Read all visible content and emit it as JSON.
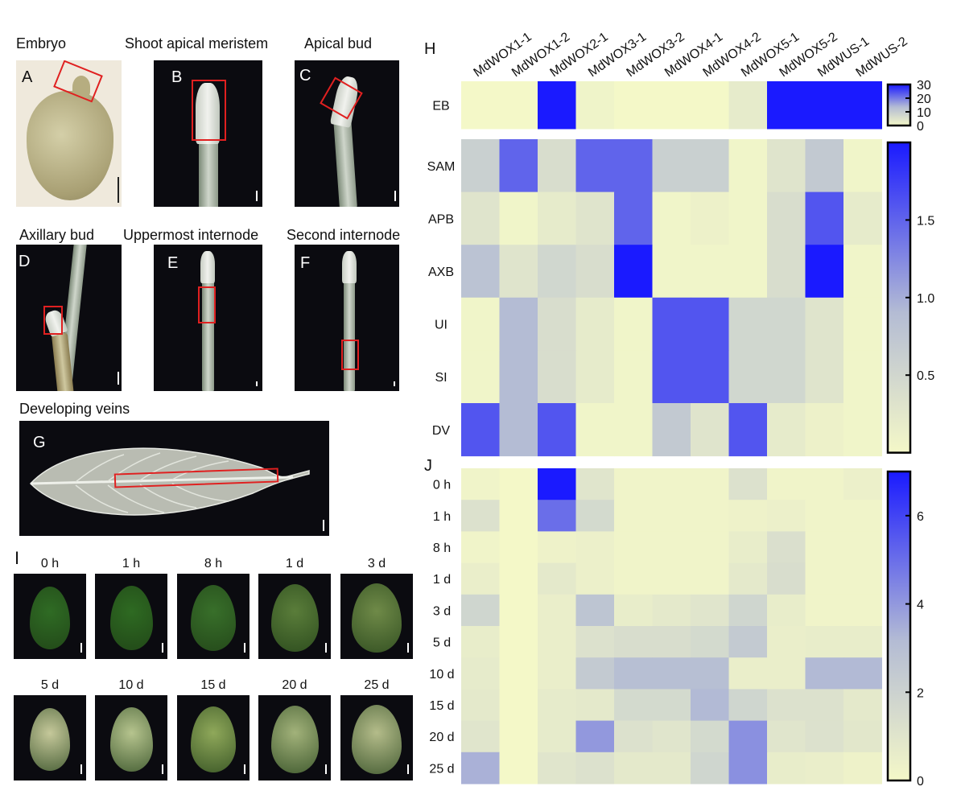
{
  "panels": {
    "A": {
      "letter": "A",
      "title": "Embryo"
    },
    "B": {
      "letter": "B",
      "title": "Shoot apical meristem"
    },
    "C": {
      "letter": "C",
      "title": "Apical bud"
    },
    "D": {
      "letter": "D",
      "title": "Axillary bud"
    },
    "E": {
      "letter": "E",
      "title": "Uppermost internode"
    },
    "F": {
      "letter": "F",
      "title": "Second internode"
    },
    "G": {
      "letter": "G",
      "title": "Developing veins"
    },
    "H": {
      "letter": "H"
    },
    "I": {
      "letter": "I",
      "timepoints_row1": [
        "0 h",
        "1 h",
        "8 h",
        "1 d",
        "3 d"
      ],
      "timepoints_row2": [
        "5 d",
        "10 d",
        "15 d",
        "20 d",
        "25 d"
      ]
    },
    "J": {
      "letter": "J"
    }
  },
  "chart_data": [
    {
      "type": "heatmap",
      "panel": "H (top)",
      "columns": [
        "MdWOX1-1",
        "MdWOX1-2",
        "MdWOX2-1",
        "MdWOX3-1",
        "MdWOX3-2",
        "MdWOX4-1",
        "MdWOX4-2",
        "MdWOX5-1",
        "MdWOX5-2",
        "MdWUS-1",
        "MdWUS-2"
      ],
      "rows": [
        "EB"
      ],
      "values": [
        [
          0.1,
          0.1,
          30,
          1,
          0.1,
          0.1,
          0.1,
          3,
          30,
          30,
          30
        ]
      ],
      "colorbar": {
        "ticks": [
          "30",
          "20",
          "10",
          "0"
        ],
        "min": 0,
        "max": 30
      },
      "colors": {
        "low": "#f4f8c8",
        "mid": "#b4bcd4",
        "high": "#1a1aff"
      }
    },
    {
      "type": "heatmap",
      "panel": "H (bottom)",
      "columns": [
        "MdWOX1-1",
        "MdWOX1-2",
        "MdWOX2-1",
        "MdWOX3-1",
        "MdWOX3-2",
        "MdWOX4-1",
        "MdWOX4-2",
        "MdWOX5-1",
        "MdWOX5-2",
        "MdWUS-1",
        "MdWUS-2"
      ],
      "rows": [
        "SAM",
        "APB",
        "AXB",
        "UI",
        "SI",
        "DV"
      ],
      "values": [
        [
          0.6,
          1.5,
          0.4,
          1.5,
          1.5,
          0.6,
          0.6,
          0.05,
          0.3,
          0.7,
          0.05
        ],
        [
          0.3,
          0.05,
          0.2,
          0.3,
          1.5,
          0.05,
          0.1,
          0.05,
          0.4,
          1.6,
          0.2
        ],
        [
          0.8,
          0.3,
          0.5,
          0.4,
          2.0,
          0.05,
          0.05,
          0.05,
          0.4,
          2.0,
          0.05
        ],
        [
          0.05,
          0.9,
          0.4,
          0.2,
          0.05,
          1.6,
          1.6,
          0.5,
          0.5,
          0.3,
          0.05
        ],
        [
          0.05,
          0.9,
          0.4,
          0.2,
          0.05,
          1.6,
          1.6,
          0.5,
          0.5,
          0.3,
          0.05
        ],
        [
          1.6,
          0.9,
          1.6,
          0.05,
          0.05,
          0.7,
          0.3,
          1.6,
          0.2,
          0.1,
          0.05
        ]
      ],
      "colorbar": {
        "ticks": [
          "1.5",
          "1.0",
          "0.5"
        ],
        "min": 0,
        "max": 2
      }
    },
    {
      "type": "heatmap",
      "panel": "J",
      "columns": [
        "MdWOX1-1",
        "MdWOX1-2",
        "MdWOX2-1",
        "MdWOX3-1",
        "MdWOX3-2",
        "MdWOX4-1",
        "MdWOX4-2",
        "MdWOX5-1",
        "MdWOX5-2",
        "MdWUS-1",
        "MdWUS-2"
      ],
      "rows": [
        "0 h",
        "1 h",
        "8 h",
        "1 d",
        "3 d",
        "5 d",
        "10 d",
        "15 d",
        "20 d",
        "25 d"
      ],
      "values": [
        [
          0.2,
          0.0,
          7.0,
          1.0,
          0.2,
          0.2,
          0.2,
          1.2,
          0.2,
          0.2,
          0.4
        ],
        [
          1.2,
          0.0,
          5.0,
          1.6,
          0.2,
          0.2,
          0.2,
          0.3,
          0.4,
          0.2,
          0.2
        ],
        [
          0.2,
          0.0,
          0.3,
          0.4,
          0.2,
          0.2,
          0.2,
          0.6,
          1.3,
          0.2,
          0.2
        ],
        [
          0.5,
          0.0,
          0.8,
          0.4,
          0.2,
          0.2,
          0.2,
          0.8,
          1.4,
          0.2,
          0.2
        ],
        [
          1.8,
          0.0,
          0.5,
          2.7,
          0.6,
          0.8,
          1.0,
          1.8,
          0.6,
          0.2,
          0.2
        ],
        [
          0.6,
          0.0,
          0.5,
          1.2,
          1.4,
          1.4,
          1.6,
          2.4,
          0.5,
          0.6,
          0.6
        ],
        [
          0.7,
          0.0,
          0.5,
          2.4,
          3.0,
          3.0,
          3.0,
          0.5,
          0.5,
          3.2,
          3.2
        ],
        [
          0.8,
          0.0,
          0.7,
          0.8,
          1.6,
          1.6,
          3.2,
          1.8,
          1.2,
          1.2,
          0.8
        ],
        [
          1.0,
          0.0,
          0.7,
          4.0,
          1.2,
          1.0,
          1.6,
          4.2,
          1.0,
          1.2,
          0.9
        ],
        [
          3.4,
          0.0,
          1.0,
          1.2,
          0.8,
          0.8,
          1.8,
          4.2,
          0.6,
          0.5,
          0.3
        ]
      ],
      "colorbar": {
        "ticks": [
          "6",
          "4",
          "2",
          "0"
        ],
        "min": 0,
        "max": 7
      }
    }
  ]
}
